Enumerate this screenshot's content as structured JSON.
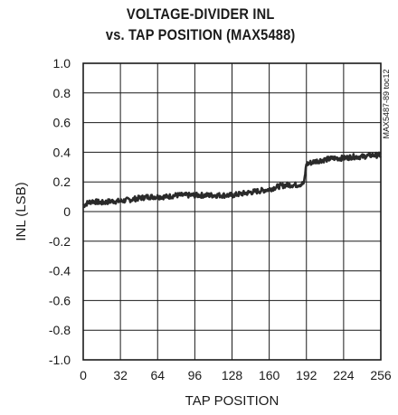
{
  "chart_data": {
    "type": "line",
    "title_lines": [
      "VOLTAGE-DIVIDER INL",
      "vs. TAP POSITION (MAX5488)"
    ],
    "xlabel": "TAP POSITION",
    "ylabel": "INL (LSB)",
    "side_note": "MAX5487-89 toc12",
    "xlim": [
      0,
      256
    ],
    "ylim": [
      -1.0,
      1.0
    ],
    "grid": true,
    "x_ticks": [
      0,
      32,
      64,
      96,
      128,
      160,
      192,
      224,
      256
    ],
    "x_tick_labels": [
      "0",
      "32",
      "64",
      "96",
      "128",
      "160",
      "192",
      "224",
      "256"
    ],
    "y_ticks": [
      1.0,
      0.8,
      0.6,
      0.4,
      0.2,
      0,
      -0.2,
      -0.4,
      -0.6,
      -0.8,
      -1.0
    ],
    "y_tick_labels": [
      "1.0",
      "0.8",
      "0.6",
      "0.4",
      "0.2",
      "0",
      "-0.2",
      "-0.4",
      "-0.6",
      "-0.8",
      "-1.0"
    ],
    "series": [
      {
        "color": "#2a2a2a",
        "x": [
          0,
          4,
          8,
          16,
          24,
          32,
          40,
          48,
          56,
          64,
          72,
          80,
          88,
          96,
          104,
          112,
          120,
          128,
          136,
          144,
          152,
          160,
          168,
          176,
          184,
          190,
          191,
          192,
          200,
          208,
          216,
          224,
          232,
          240,
          248,
          256
        ],
        "y": [
          0.04,
          0.06,
          0.07,
          0.06,
          0.07,
          0.07,
          0.08,
          0.09,
          0.1,
          0.1,
          0.1,
          0.11,
          0.11,
          0.11,
          0.11,
          0.11,
          0.11,
          0.11,
          0.12,
          0.13,
          0.14,
          0.15,
          0.17,
          0.18,
          0.18,
          0.19,
          0.26,
          0.32,
          0.34,
          0.35,
          0.36,
          0.36,
          0.37,
          0.37,
          0.38,
          0.38
        ]
      }
    ]
  }
}
